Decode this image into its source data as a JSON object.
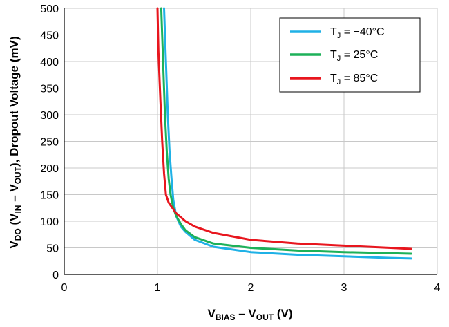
{
  "chart_data": {
    "type": "line",
    "xlabel": {
      "base1": "V",
      "sub1": "BIAS",
      "mid": " – V",
      "sub2": "OUT",
      "end": " (V)"
    },
    "ylabel": {
      "base1": "V",
      "sub1": "DO",
      "mid1": " (V",
      "sub2": "IN",
      "mid2": " – V",
      "sub3": "OUT",
      "end": "), Dropout Voltage (mV)"
    },
    "xlim": [
      0,
      4
    ],
    "ylim": [
      0,
      500
    ],
    "xticks": [
      "0",
      "1",
      "2",
      "3",
      "4"
    ],
    "yticks": [
      "0",
      "50",
      "100",
      "150",
      "200",
      "250",
      "300",
      "350",
      "400",
      "450",
      "500"
    ],
    "grid": true,
    "legend_position": "top-right",
    "series": [
      {
        "name": "TJ = −40°C",
        "label": {
          "base": "T",
          "sub": "J",
          "rest": " = −40°C"
        },
        "color": "#1FB1E6",
        "x": [
          1.07,
          1.09,
          1.11,
          1.13,
          1.15,
          1.17,
          1.2,
          1.25,
          1.3,
          1.4,
          1.6,
          2.0,
          2.5,
          3.0,
          3.5,
          3.72
        ],
        "y": [
          500,
          400,
          300,
          230,
          180,
          140,
          110,
          90,
          80,
          65,
          52,
          42,
          37,
          34,
          31,
          30
        ]
      },
      {
        "name": "TJ = 25°C",
        "label": {
          "base": "T",
          "sub": "J",
          "rest": " = 25°C"
        },
        "color": "#1DB159",
        "x": [
          1.04,
          1.06,
          1.08,
          1.1,
          1.12,
          1.14,
          1.17,
          1.2,
          1.25,
          1.3,
          1.4,
          1.6,
          2.0,
          2.5,
          3.0,
          3.5,
          3.72
        ],
        "y": [
          500,
          400,
          300,
          230,
          180,
          150,
          125,
          110,
          95,
          83,
          70,
          58,
          50,
          45,
          42,
          40,
          39
        ]
      },
      {
        "name": "TJ = 85°C",
        "label": {
          "base": "T",
          "sub": "J",
          "rest": " = 85°C"
        },
        "color": "#E8161E",
        "x": [
          1.0,
          1.01,
          1.03,
          1.05,
          1.07,
          1.09,
          1.12,
          1.16,
          1.2,
          1.3,
          1.4,
          1.6,
          2.0,
          2.5,
          3.0,
          3.5,
          3.72
        ],
        "y": [
          500,
          420,
          330,
          250,
          190,
          150,
          135,
          125,
          115,
          100,
          90,
          78,
          65,
          58,
          54,
          50,
          48
        ]
      }
    ]
  }
}
